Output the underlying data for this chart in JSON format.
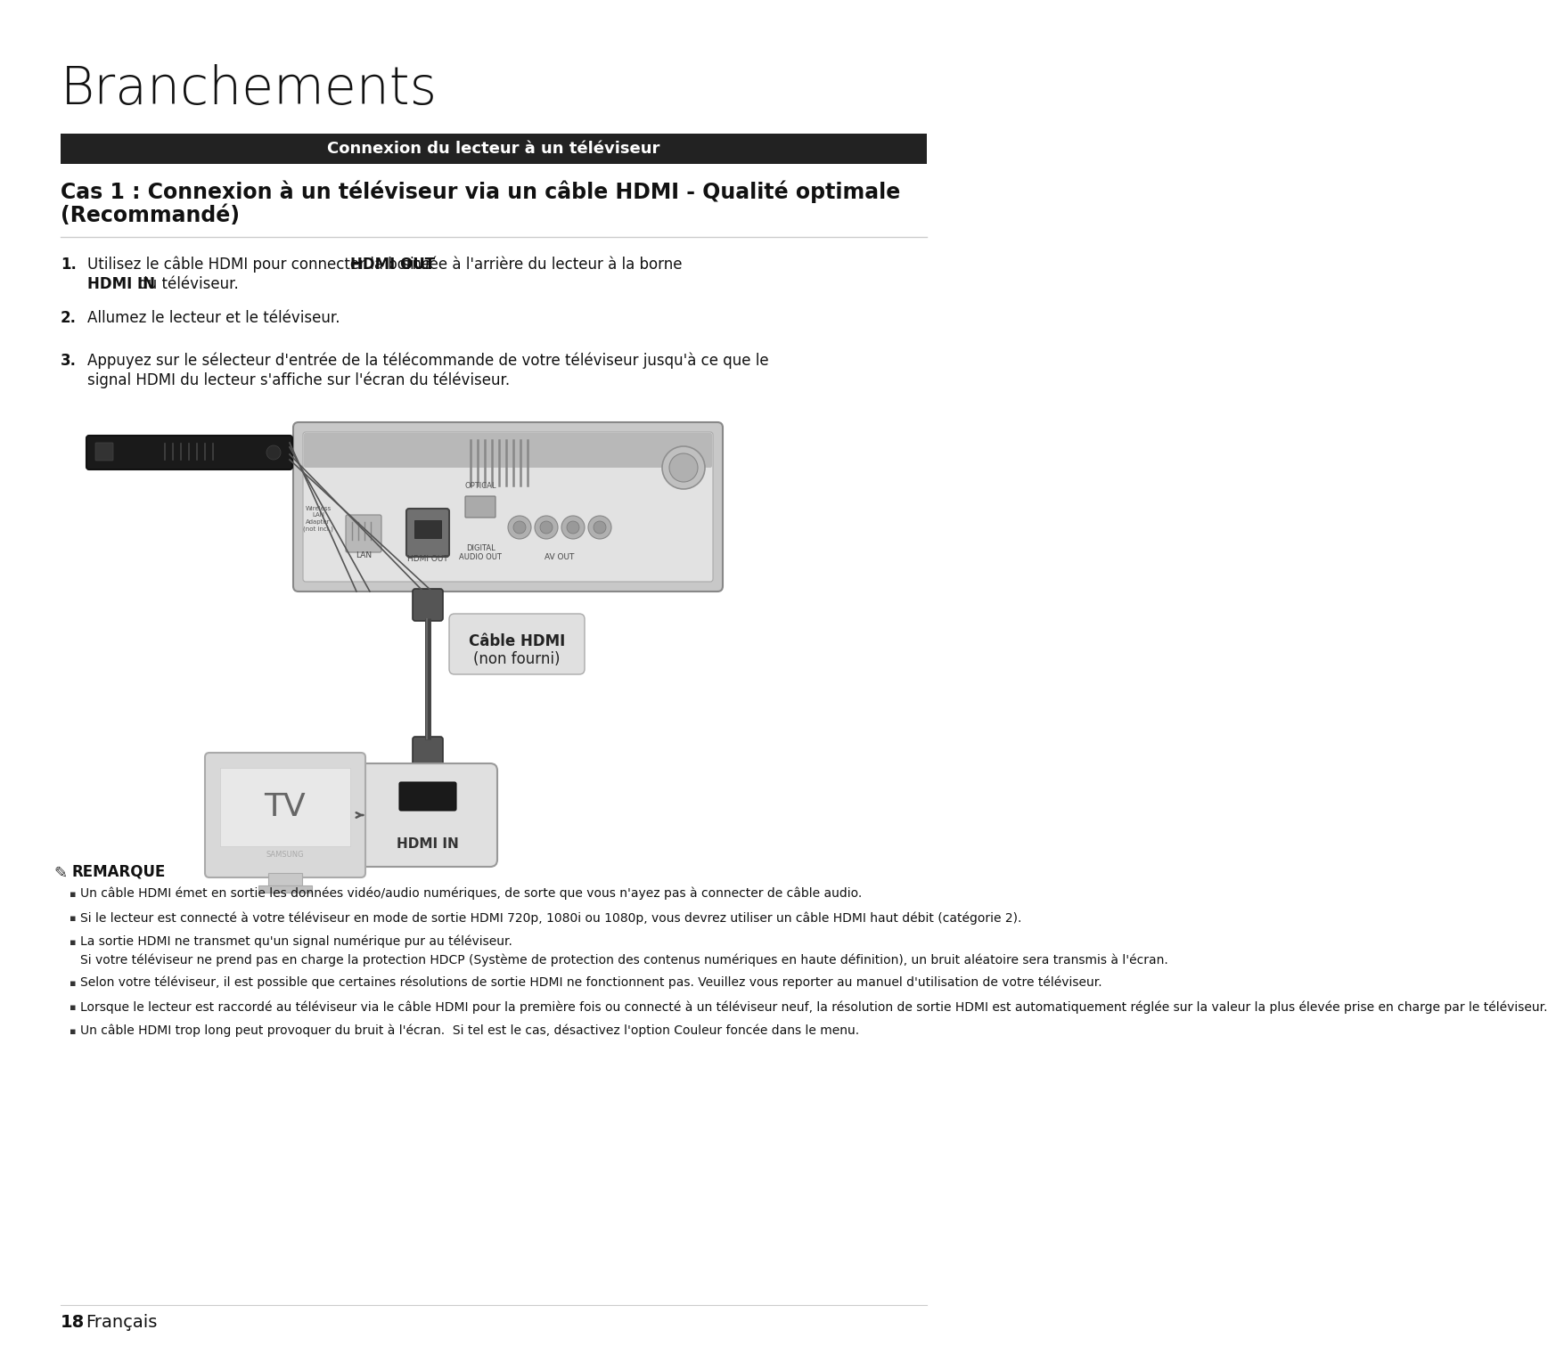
{
  "bg_color": "#ffffff",
  "title": "Branchements",
  "section_header": "Connexion du lecteur à un téléviseur",
  "section_header_bg": "#222222",
  "section_header_color": "#ffffff",
  "cas_title_line1": "Cas 1 : Connexion à un téléviseur via un câble HDMI - Qualité optimale",
  "cas_title_line2": "(Recommandé)",
  "cable_label_line1": "Câble HDMI",
  "cable_label_line2": "(non fourni)",
  "hdmi_in_label": "HDMI IN",
  "tv_label": "TV",
  "note_header": "REMARQUE",
  "notes": [
    "Un câble HDMI émet en sortie les données vidéo/audio numériques, de sorte que vous n'ayez pas à connecter de câble audio.",
    "Si le lecteur est connecté à votre téléviseur en mode de sortie HDMI 720p, 1080i ou 1080p, vous devrez utiliser un câble HDMI haut débit (catégorie 2).",
    "La sortie HDMI ne transmet qu'un signal numérique pur au téléviseur.\nSi votre téléviseur ne prend pas en charge la protection HDCP (Système de protection des contenus numériques en haute définition), un bruit aléatoire sera transmis à l'écran.",
    "Selon votre téléviseur, il est possible que certaines résolutions de sortie HDMI ne fonctionnent pas. Veuillez vous reporter au manuel d'utilisation de votre téléviseur.",
    "Lorsque le lecteur est raccordé au téléviseur via le câble HDMI pour la première fois ou connecté à un téléviseur neuf, la résolution de sortie HDMI est automatiquement réglée sur la valeur la plus élevée prise en charge par le téléviseur.",
    "Un câble HDMI trop long peut provoquer du bruit à l'écran.  Si tel est le cas, désactivez l'option Couleur foncée dans le menu."
  ],
  "footer_num": "18",
  "footer_text": "Français"
}
